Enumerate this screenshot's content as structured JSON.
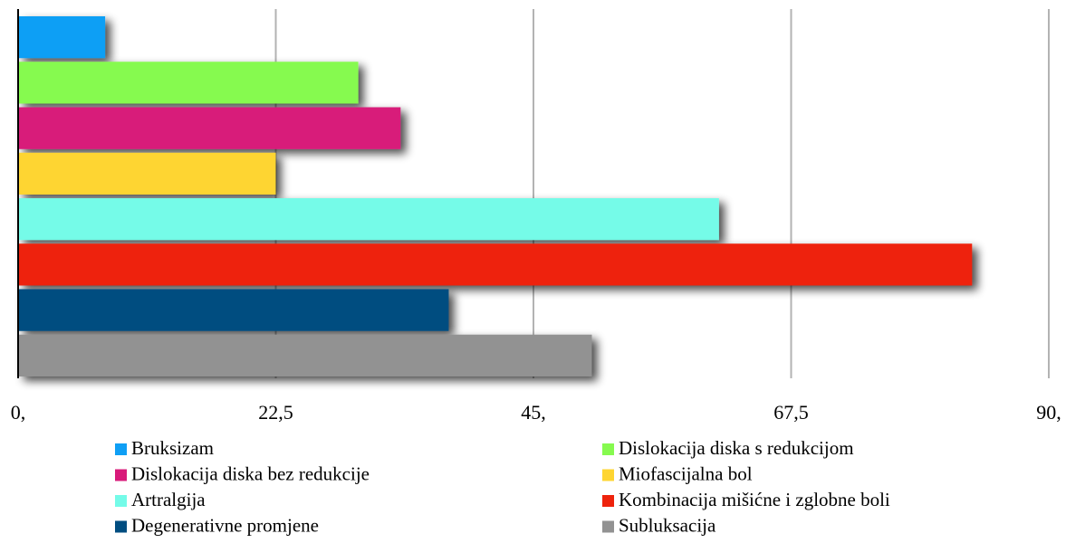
{
  "chart_data": {
    "type": "bar",
    "orientation": "horizontal",
    "series": [
      {
        "name": "Bruksizam",
        "color": "#0f9ff5",
        "values": [
          7.6
        ]
      },
      {
        "name": "Dislokacija diska s redukcijom",
        "color": "#86fa4f",
        "values": [
          29.7
        ]
      },
      {
        "name": "Dislokacija diska bez redukcije",
        "color": "#d81a7a",
        "values": [
          33.4
        ]
      },
      {
        "name": "Miofascijalna bol",
        "color": "#fed531",
        "values": [
          22.5
        ]
      },
      {
        "name": "Artralgija",
        "color": "#74fbe8",
        "values": [
          61.2
        ]
      },
      {
        "name": "Kombinacija mišićne i zglobne boli",
        "color": "#ee230c",
        "values": [
          83.3
        ]
      },
      {
        "name": "Degenerativne promjene",
        "color": "#004d80",
        "values": [
          37.6
        ]
      },
      {
        "name": "Subluksacija",
        "color": "#929292",
        "values": [
          50.1
        ]
      }
    ],
    "xlim": [
      0,
      90
    ],
    "xticks": [
      {
        "value": 0,
        "label": "0,"
      },
      {
        "value": 22.5,
        "label": "22,5"
      },
      {
        "value": 45,
        "label": "45,"
      },
      {
        "value": 67.5,
        "label": "67,5"
      },
      {
        "value": 90,
        "label": "90,"
      }
    ],
    "grid": true,
    "legend": "bottom",
    "shadow": true
  }
}
